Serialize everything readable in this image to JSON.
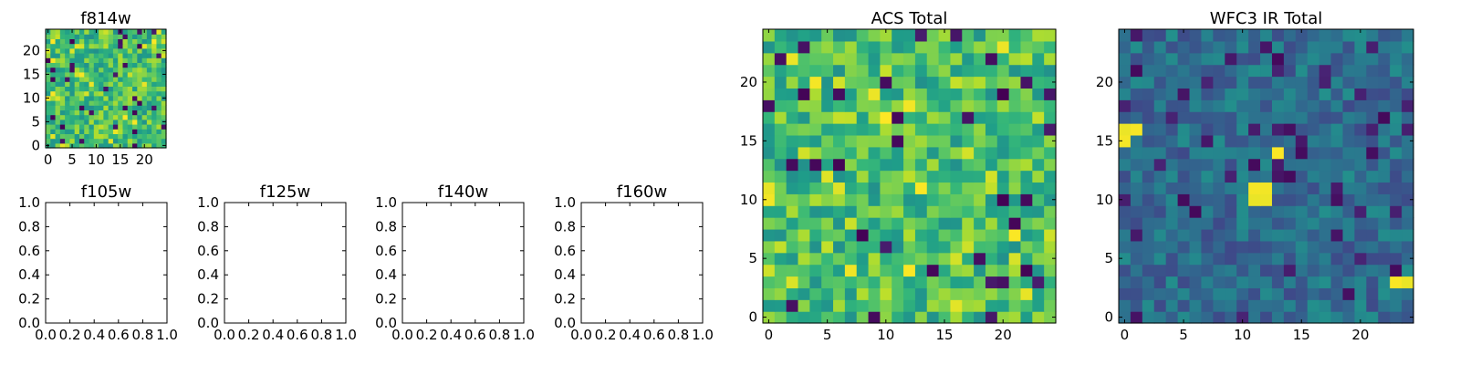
{
  "chart_data": [
    {
      "type": "heatmap",
      "title": "f814w",
      "grid_size": 25,
      "colormap": "viridis",
      "xlim": [
        -0.5,
        24.5
      ],
      "ylim": [
        -0.5,
        24.5
      ],
      "xticks": [
        "0",
        "5",
        "10",
        "15",
        "20"
      ],
      "yticks": [
        "0",
        "5",
        "10",
        "15",
        "20"
      ],
      "value_distribution": "mostly mid-to-high (green/yellow) with sparse low (dark) cells"
    },
    {
      "type": "scatter",
      "title": "f105w",
      "empty": true,
      "xlim": [
        0,
        1
      ],
      "ylim": [
        0,
        1
      ],
      "xticks": [
        "0.0",
        "0.2",
        "0.4",
        "0.6",
        "0.8",
        "1.0"
      ],
      "yticks": [
        "0.0",
        "0.2",
        "0.4",
        "0.6",
        "0.8",
        "1.0"
      ]
    },
    {
      "type": "scatter",
      "title": "f125w",
      "empty": true,
      "xlim": [
        0,
        1
      ],
      "ylim": [
        0,
        1
      ],
      "xticks": [
        "0.0",
        "0.2",
        "0.4",
        "0.6",
        "0.8",
        "1.0"
      ],
      "yticks": [
        "0.0",
        "0.2",
        "0.4",
        "0.6",
        "0.8",
        "1.0"
      ]
    },
    {
      "type": "scatter",
      "title": "f140w",
      "empty": true,
      "xlim": [
        0,
        1
      ],
      "ylim": [
        0,
        1
      ],
      "xticks": [
        "0.0",
        "0.2",
        "0.4",
        "0.6",
        "0.8",
        "1.0"
      ],
      "yticks": [
        "0.0",
        "0.2",
        "0.4",
        "0.6",
        "0.8",
        "1.0"
      ]
    },
    {
      "type": "scatter",
      "title": "f160w",
      "empty": true,
      "xlim": [
        0,
        1
      ],
      "ylim": [
        0,
        1
      ],
      "xticks": [
        "0.0",
        "0.2",
        "0.4",
        "0.6",
        "0.8",
        "1.0"
      ],
      "yticks": [
        "0.0",
        "0.2",
        "0.4",
        "0.6",
        "0.8",
        "1.0"
      ]
    },
    {
      "type": "heatmap",
      "title": "ACS Total",
      "grid_size": 25,
      "colormap": "viridis",
      "xlim": [
        -0.5,
        24.5
      ],
      "ylim": [
        -0.5,
        24.5
      ],
      "xticks": [
        "0",
        "5",
        "10",
        "15",
        "20"
      ],
      "yticks": [
        "0",
        "5",
        "10",
        "15",
        "20"
      ],
      "value_distribution": "mostly mid-to-high (green/yellow) with sparse low (dark) cells"
    },
    {
      "type": "heatmap",
      "title": "WFC3 IR Total",
      "grid_size": 25,
      "colormap": "viridis",
      "xlim": [
        -0.5,
        24.5
      ],
      "ylim": [
        -0.5,
        24.5
      ],
      "xticks": [
        "0",
        "5",
        "10",
        "15",
        "20"
      ],
      "yticks": [
        "0",
        "5",
        "10",
        "15",
        "20"
      ],
      "value_distribution": "mostly mid-low (teal/blue) with a few bright (yellow) spots",
      "bright_cells": [
        [
          0,
          15
        ],
        [
          0,
          16
        ],
        [
          1,
          16
        ],
        [
          11,
          10
        ],
        [
          11,
          11
        ],
        [
          12,
          10
        ],
        [
          12,
          11
        ],
        [
          13,
          14
        ],
        [
          23,
          3
        ],
        [
          24,
          3
        ]
      ]
    }
  ]
}
